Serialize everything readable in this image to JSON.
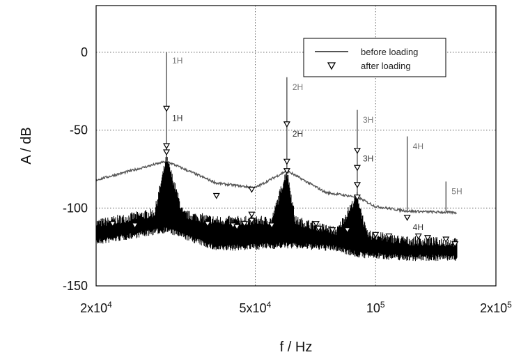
{
  "chart_data": {
    "type": "line",
    "xlabel": "f / Hz",
    "ylabel": "A / dB",
    "xscale": "log",
    "xlim": [
      20000,
      200000
    ],
    "ylim": [
      -150,
      30
    ],
    "grid": true,
    "legend_position": "top-right",
    "x_ticks": [
      {
        "value": 20000,
        "label": "2x10"
      },
      {
        "value": 50000,
        "label": "5x10"
      },
      {
        "value": 100000,
        "label": "10"
      },
      {
        "value": 200000,
        "label": "2x10"
      }
    ],
    "x_tick_exponents": [
      "4",
      "4",
      "5",
      "5"
    ],
    "y_ticks": [
      0,
      -50,
      -100,
      -150
    ],
    "colors": {
      "before": "#555555",
      "after": "#000000",
      "before_label": "#777777",
      "after_label": "#333333"
    },
    "series": [
      {
        "name": "before loading",
        "style": "line",
        "baseline": [
          [
            20000,
            -82
          ],
          [
            30000,
            -70
          ],
          [
            40000,
            -84
          ],
          [
            50000,
            -87
          ],
          [
            60000,
            -76
          ],
          [
            75000,
            -90
          ],
          [
            90000,
            -93
          ],
          [
            100000,
            -99
          ],
          [
            120000,
            -102
          ],
          [
            160000,
            -103
          ]
        ],
        "peaks": [
          [
            30000,
            0
          ],
          [
            60000,
            -16
          ],
          [
            90000,
            -37
          ],
          [
            120000,
            -54
          ],
          [
            150000,
            -83
          ]
        ]
      },
      {
        "name": "after loading",
        "style": "band",
        "band_upper": [
          [
            20000,
            -110
          ],
          [
            28000,
            -103
          ],
          [
            30000,
            -68
          ],
          [
            33000,
            -104
          ],
          [
            40000,
            -108
          ],
          [
            55000,
            -108
          ],
          [
            60000,
            -76
          ],
          [
            63000,
            -108
          ],
          [
            80000,
            -115
          ],
          [
            90000,
            -92
          ],
          [
            95000,
            -117
          ],
          [
            120000,
            -121
          ],
          [
            160000,
            -122
          ]
        ],
        "band_lower": [
          [
            20000,
            -120
          ],
          [
            30000,
            -112
          ],
          [
            40000,
            -124
          ],
          [
            60000,
            -122
          ],
          [
            80000,
            -124
          ],
          [
            90000,
            -128
          ],
          [
            120000,
            -130
          ],
          [
            160000,
            -130
          ]
        ],
        "markers": [
          [
            30000,
            -36
          ],
          [
            30000,
            -60
          ],
          [
            30000,
            -64
          ],
          [
            40000,
            -92
          ],
          [
            49000,
            -88
          ],
          [
            49000,
            -104
          ],
          [
            49000,
            -108
          ],
          [
            47000,
            -110
          ],
          [
            55000,
            -111
          ],
          [
            60000,
            -46
          ],
          [
            60000,
            -70
          ],
          [
            60000,
            -76
          ],
          [
            71000,
            -110
          ],
          [
            72000,
            -113
          ],
          [
            78000,
            -114
          ],
          [
            85000,
            -114
          ],
          [
            90000,
            -63
          ],
          [
            90000,
            -74
          ],
          [
            90000,
            -85
          ],
          [
            90000,
            -93
          ],
          [
            100000,
            -117
          ],
          [
            108000,
            -118
          ],
          [
            120000,
            -106
          ],
          [
            128000,
            -118
          ],
          [
            135000,
            -119
          ],
          [
            150000,
            -120
          ],
          [
            158000,
            -123
          ],
          [
            22000,
            -110
          ],
          [
            25000,
            -111
          ],
          [
            38000,
            -110
          ],
          [
            44000,
            -111
          ],
          [
            45000,
            -112
          ]
        ]
      }
    ],
    "peak_labels": [
      {
        "text": "1H",
        "x": 30000,
        "y": 0,
        "series": "before"
      },
      {
        "text": "2H",
        "x": 60000,
        "y": -17,
        "series": "before"
      },
      {
        "text": "3H",
        "x": 90000,
        "y": -38,
        "series": "before"
      },
      {
        "text": "4H",
        "x": 120000,
        "y": -55,
        "series": "before"
      },
      {
        "text": "5H",
        "x": 150000,
        "y": -84,
        "series": "before"
      },
      {
        "text": "1H",
        "x": 30000,
        "y": -37,
        "series": "after"
      },
      {
        "text": "2H",
        "x": 60000,
        "y": -47,
        "series": "after"
      },
      {
        "text": "3H",
        "x": 90000,
        "y": -63,
        "series": "after"
      },
      {
        "text": "4H",
        "x": 120000,
        "y": -107,
        "series": "after"
      }
    ]
  }
}
